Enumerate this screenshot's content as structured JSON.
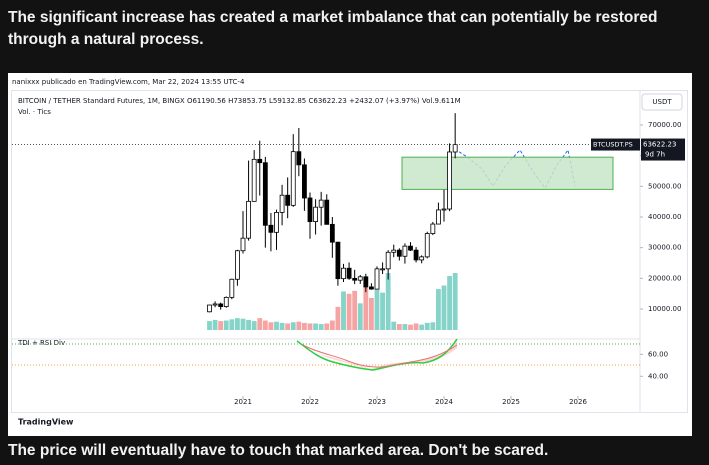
{
  "post": {
    "text": "The significant increase has created a market imbalance that can potentially be restored through a natural process.",
    "caption": "The price will eventually have to touch that marked area. Don't be scared."
  },
  "chart_data": {
    "type": "candlestick",
    "attribution": "nanixxx publicado en TradingView.com, Mar 22, 2024 13:55 UTC-4",
    "title": "BITCOIN / TETHER Standard Futures, 1M, BINGX  O61190.56  H73853.75  L59132.85  C63622.23  +2432.07 (+3.97%)  Vol.9.611M",
    "legend_text": "Vol. · Tics",
    "currency": "USDT",
    "symbol_label": "BTCUSDT.PS",
    "price_label": "63622.23",
    "countdown": "9d 7h",
    "x": [
      "2020-07",
      "2020-08",
      "2020-09",
      "2020-10",
      "2020-11",
      "2020-12",
      "2021-01",
      "2021-02",
      "2021-03",
      "2021-04",
      "2021-05",
      "2021-06",
      "2021-07",
      "2021-08",
      "2021-09",
      "2021-10",
      "2021-11",
      "2021-12",
      "2022-01",
      "2022-02",
      "2022-03",
      "2022-04",
      "2022-05",
      "2022-06",
      "2022-07",
      "2022-08",
      "2022-09",
      "2022-10",
      "2022-11",
      "2022-12",
      "2023-01",
      "2023-02",
      "2023-03",
      "2023-04",
      "2023-05",
      "2023-06",
      "2023-07",
      "2023-08",
      "2023-09",
      "2023-10",
      "2023-11",
      "2023-12",
      "2024-01",
      "2024-02",
      "2024-03"
    ],
    "open": [
      9100,
      11300,
      11650,
      10800,
      13800,
      19700,
      29000,
      33100,
      45100,
      58800,
      57700,
      37300,
      35000,
      41500,
      47100,
      43800,
      61300,
      57000,
      46200,
      38500,
      43200,
      45500,
      37600,
      31800,
      19900,
      23300,
      20000,
      19400,
      20500,
      17200,
      16500,
      23100,
      23100,
      28500,
      29200,
      27200,
      30500,
      29200,
      26000,
      27000,
      34600,
      37700,
      42300,
      42600,
      61190.56
    ],
    "high": [
      11400,
      12500,
      12100,
      14100,
      19900,
      29300,
      41900,
      58400,
      61800,
      64900,
      59600,
      41300,
      42400,
      50500,
      52900,
      67000,
      69000,
      59100,
      48000,
      45800,
      48200,
      47400,
      40000,
      31900,
      24700,
      25200,
      22800,
      21100,
      21500,
      18400,
      23900,
      25200,
      29200,
      31000,
      29800,
      31400,
      31800,
      30200,
      27500,
      35200,
      38400,
      44700,
      48900,
      64000,
      73853.75
    ],
    "low": [
      8900,
      10600,
      9800,
      10400,
      13200,
      17600,
      28100,
      32300,
      45000,
      47000,
      30000,
      28800,
      29300,
      37300,
      39600,
      43300,
      53300,
      42000,
      32900,
      34300,
      37200,
      37600,
      26700,
      17600,
      18800,
      19500,
      18100,
      18200,
      15500,
      16300,
      16500,
      21400,
      19600,
      26900,
      25800,
      24800,
      28900,
      25200,
      24900,
      26500,
      34100,
      37600,
      38500,
      41900,
      59132.85
    ],
    "close": [
      11300,
      11650,
      10800,
      13800,
      19700,
      29000,
      33100,
      45100,
      58800,
      57700,
      37300,
      35000,
      41500,
      47100,
      43800,
      61300,
      57000,
      46200,
      38500,
      43200,
      45500,
      37600,
      31800,
      19900,
      23300,
      20000,
      19400,
      20500,
      17200,
      16500,
      23100,
      23100,
      28500,
      29200,
      27200,
      30500,
      29200,
      26000,
      27000,
      34600,
      37700,
      42300,
      42600,
      61200,
      63622.23
    ],
    "volume": [
      1.5,
      1.7,
      1.5,
      1.6,
      1.8,
      2.0,
      1.9,
      1.7,
      1.5,
      2.0,
      1.6,
      1.3,
      1.4,
      1.2,
      1.1,
      1.3,
      1.4,
      1.2,
      1.1,
      1.1,
      1.0,
      1.1,
      1.6,
      3.9,
      6.5,
      6.1,
      6.6,
      4.5,
      7.2,
      5.4,
      6.8,
      6.3,
      9.6,
      1.4,
      1.0,
      1.0,
      0.9,
      1.1,
      0.9,
      1.2,
      1.3,
      6.9,
      7.5,
      9.1,
      9.611
    ],
    "up_volume_color": "#86d3c9",
    "down_volume_color": "#f5a3a3",
    "ylim": [
      0,
      80000
    ],
    "yticks": [
      {
        "value": 10000,
        "label": "10000.00"
      },
      {
        "value": 20000,
        "label": "20000.00"
      },
      {
        "value": 30000,
        "label": "30000.00"
      },
      {
        "value": 40000,
        "label": "40000.00"
      },
      {
        "value": 50000,
        "label": "50000.00"
      },
      {
        "value": 60000,
        "label": "60000.00"
      },
      {
        "value": 70000,
        "label": "70000.00"
      }
    ],
    "xticks": [
      2021,
      2022,
      2023,
      2024,
      2025,
      2026
    ],
    "zone": [
      49000,
      59500
    ],
    "indicator": {
      "name": "TDI + RSI Div",
      "ylim": [
        23,
        73
      ],
      "yticks": [
        {
          "value": 60,
          "label": "60.00"
        },
        {
          "value": 40,
          "label": "40.00"
        }
      ]
    },
    "footer": "TradingView"
  }
}
